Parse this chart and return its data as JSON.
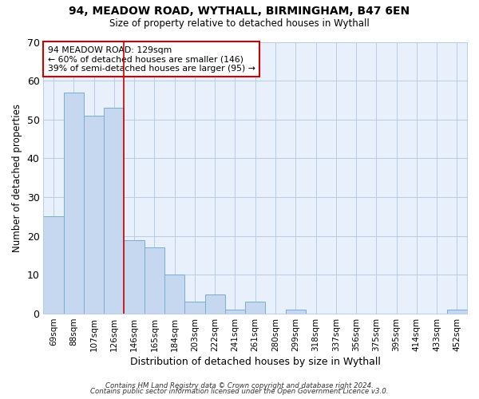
{
  "title1": "94, MEADOW ROAD, WYTHALL, BIRMINGHAM, B47 6EN",
  "title2": "Size of property relative to detached houses in Wythall",
  "xlabel": "Distribution of detached houses by size in Wythall",
  "ylabel": "Number of detached properties",
  "categories": [
    "69sqm",
    "88sqm",
    "107sqm",
    "126sqm",
    "146sqm",
    "165sqm",
    "184sqm",
    "203sqm",
    "222sqm",
    "241sqm",
    "261sqm",
    "280sqm",
    "299sqm",
    "318sqm",
    "337sqm",
    "356sqm",
    "375sqm",
    "395sqm",
    "414sqm",
    "433sqm",
    "452sqm"
  ],
  "values": [
    25,
    57,
    51,
    53,
    19,
    17,
    10,
    3,
    5,
    1,
    3,
    0,
    1,
    0,
    0,
    0,
    0,
    0,
    0,
    0,
    1
  ],
  "bar_color": "#c5d8f0",
  "bar_edge_color": "#7aadd4",
  "grid_color": "#b8cce4",
  "plot_bg_color": "#e8f0fb",
  "fig_bg_color": "#ffffff",
  "red_line_x": 3.5,
  "annotation_text": "94 MEADOW ROAD: 129sqm\n← 60% of detached houses are smaller (146)\n39% of semi-detached houses are larger (95) →",
  "annotation_box_color": "white",
  "annotation_border_color": "#cc0000",
  "footer1": "Contains HM Land Registry data © Crown copyright and database right 2024.",
  "footer2": "Contains public sector information licensed under the Open Government Licence v3.0.",
  "ylim": [
    0,
    70
  ],
  "yticks": [
    0,
    10,
    20,
    30,
    40,
    50,
    60,
    70
  ]
}
